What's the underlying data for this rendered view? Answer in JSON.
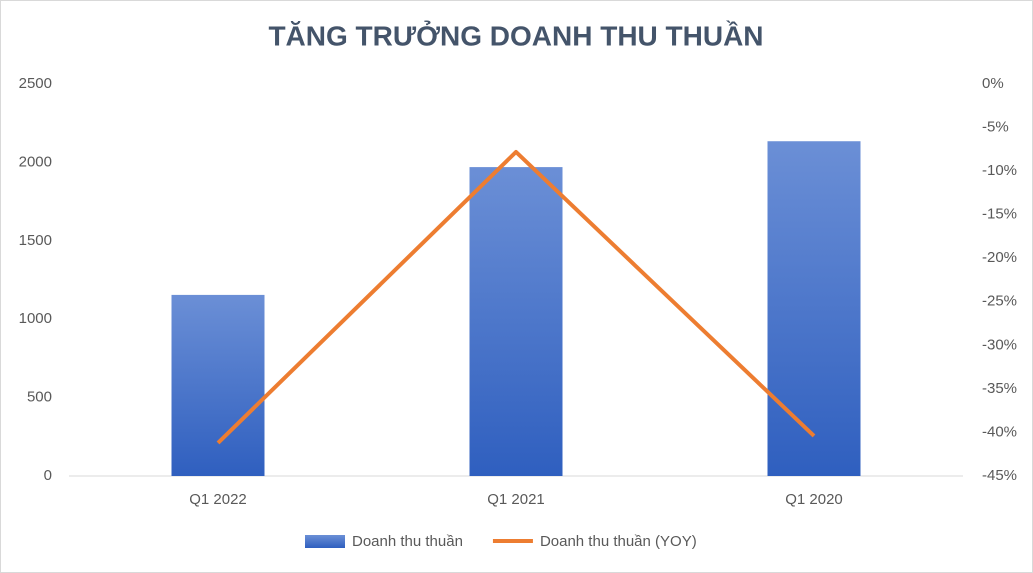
{
  "chart_data": {
    "type": "bar",
    "title": "TĂNG TRƯỞNG DOANH THU THUẦN",
    "categories": [
      "Q1 2022",
      "Q1 2021",
      "Q1 2020"
    ],
    "series": [
      {
        "name": "Doanh thu thuần",
        "color": "#4472c4",
        "values": [
          1155,
          1970,
          2135
        ]
      },
      {
        "name": "Doanh thu thuần (YOY)",
        "color": "#ed7d31",
        "type": "line",
        "axis": "y2",
        "values": [
          -41.2,
          -7.8,
          -40.4
        ]
      }
    ],
    "ylim": [
      0,
      2500
    ],
    "yticks": [
      0,
      500,
      1000,
      1500,
      2000,
      2500
    ],
    "y2lim": [
      -45,
      0
    ],
    "y2ticks": [
      {
        "value": 0,
        "label": "0%"
      },
      {
        "value": -5,
        "label": "-5%"
      },
      {
        "value": -10,
        "label": "-10%"
      },
      {
        "value": -15,
        "label": "-15%"
      },
      {
        "value": -20,
        "label": "-20%"
      },
      {
        "value": -25,
        "label": "-25%"
      },
      {
        "value": -30,
        "label": "-30%"
      },
      {
        "value": -35,
        "label": "-35%"
      },
      {
        "value": -40,
        "label": "-40%"
      },
      {
        "value": -45,
        "label": "-45%"
      }
    ],
    "legend": "bottom"
  }
}
